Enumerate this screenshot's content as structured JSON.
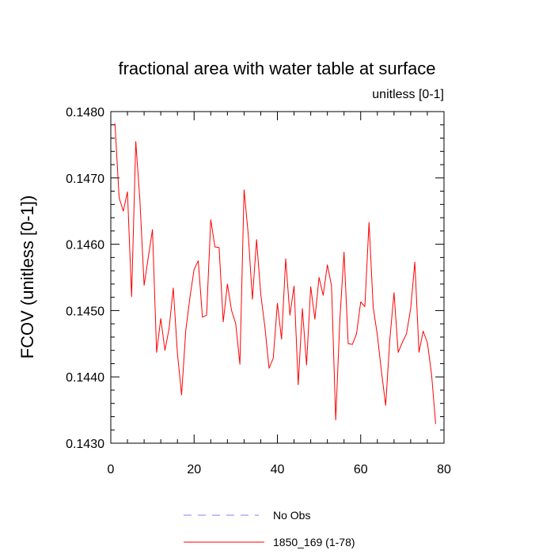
{
  "chart_data": {
    "type": "line",
    "title": "fractional area with water table at surface",
    "units_label": "unitless [0-1]",
    "ylabel": "FCOV  (unitless [0-1])",
    "xlabel": "",
    "xlim": [
      0,
      80
    ],
    "ylim": [
      0.143,
      0.148
    ],
    "x_ticks": [
      0,
      20,
      40,
      60,
      80
    ],
    "x_tick_labels": [
      "0",
      "20",
      "40",
      "60",
      "80"
    ],
    "y_ticks": [
      0.143,
      0.144,
      0.145,
      0.146,
      0.147,
      0.148
    ],
    "y_tick_labels": [
      "0.1430",
      "0.1440",
      "0.1450",
      "0.1460",
      "0.1470",
      "0.1480"
    ],
    "grid": false,
    "legend_position": "bottom",
    "legend": [
      {
        "label": "No Obs",
        "color": "#8080ff",
        "style": "dashed"
      },
      {
        "label": "1850_169 (1-78)",
        "color": "#ff0000",
        "style": "solid"
      }
    ],
    "series": [
      {
        "name": "1850_169 (1-78)",
        "color": "#ff0000",
        "x": [
          1,
          2,
          3,
          4,
          5,
          6,
          7,
          8,
          9,
          10,
          11,
          12,
          13,
          14,
          15,
          16,
          17,
          18,
          19,
          20,
          21,
          22,
          23,
          24,
          25,
          26,
          27,
          28,
          29,
          30,
          31,
          32,
          33,
          34,
          35,
          36,
          37,
          38,
          39,
          40,
          41,
          42,
          43,
          44,
          45,
          46,
          47,
          48,
          49,
          50,
          51,
          52,
          53,
          54,
          55,
          56,
          57,
          58,
          59,
          60,
          61,
          62,
          63,
          64,
          65,
          66,
          67,
          68,
          69,
          70,
          71,
          72,
          73,
          74,
          75,
          76,
          77,
          78
        ],
        "values": [
          0.14782,
          0.1467,
          0.1465,
          0.14679,
          0.14521,
          0.14755,
          0.14665,
          0.14538,
          0.1458,
          0.14622,
          0.14437,
          0.14488,
          0.1444,
          0.14473,
          0.14534,
          0.14435,
          0.14373,
          0.1447,
          0.1452,
          0.14562,
          0.14575,
          0.1449,
          0.14493,
          0.14637,
          0.14596,
          0.14595,
          0.14483,
          0.1454,
          0.145,
          0.1448,
          0.14419,
          0.14682,
          0.14615,
          0.14517,
          0.14607,
          0.14525,
          0.14475,
          0.14413,
          0.14428,
          0.14511,
          0.14457,
          0.14578,
          0.14493,
          0.14537,
          0.14388,
          0.14503,
          0.14418,
          0.14536,
          0.14487,
          0.1455,
          0.14523,
          0.14569,
          0.14537,
          0.14335,
          0.14487,
          0.14588,
          0.1445,
          0.14449,
          0.14465,
          0.14513,
          0.14506,
          0.14633,
          0.14505,
          0.14463,
          0.14407,
          0.14357,
          0.14457,
          0.14527,
          0.14437,
          0.14452,
          0.14465,
          0.14503,
          0.14573,
          0.14437,
          0.14469,
          0.14452,
          0.14405,
          0.14329
        ]
      }
    ]
  }
}
